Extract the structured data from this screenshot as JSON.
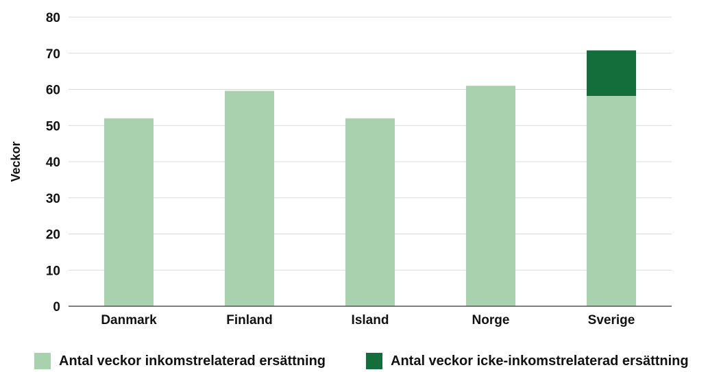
{
  "chart_data": {
    "type": "bar",
    "stacked": true,
    "categories": [
      "Danmark",
      "Finland",
      "Island",
      "Norge",
      "Sverige"
    ],
    "series": [
      {
        "name": "Antal veckor inkomstrelaterad ersättning",
        "color": "#a8d1ad",
        "values": [
          52,
          59.6,
          52,
          61,
          58.2
        ]
      },
      {
        "name": "Antal veckor icke-inkomstrelaterad ersättning",
        "color": "#146e3c",
        "values": [
          0,
          0,
          0,
          0,
          12.6
        ]
      }
    ],
    "ylabel": "Veckor",
    "ylim": [
      0,
      80
    ],
    "yticks": [
      0,
      10,
      20,
      30,
      40,
      50,
      60,
      70,
      80
    ],
    "grid": true,
    "legend_position": "bottom"
  }
}
